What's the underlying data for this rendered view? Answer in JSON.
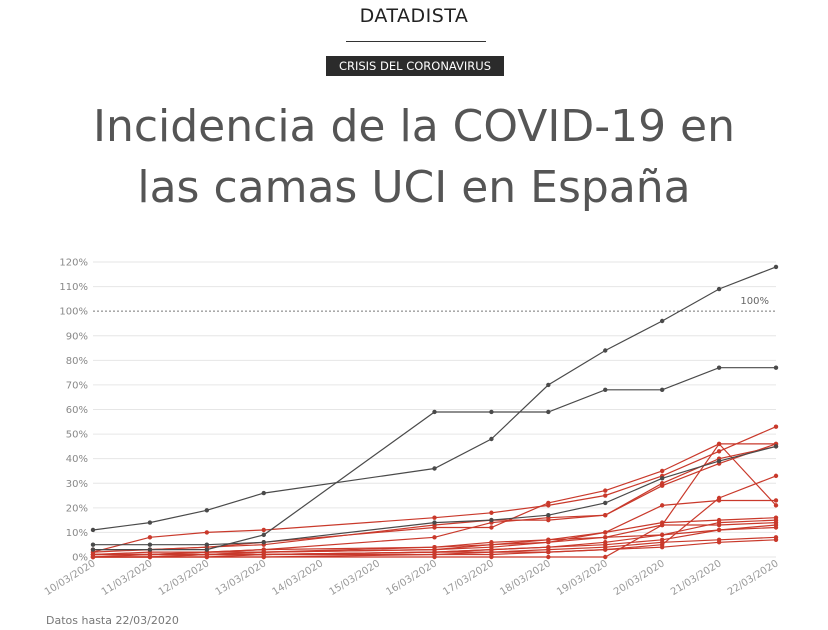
{
  "header": {
    "brand": "DATADISTA",
    "tag": "CRISIS DEL CORONAVIRUS",
    "title_line1": "Incidencia de la COVID-19 en",
    "title_line2": "las camas UCI en España"
  },
  "footnote": "Datos hasta 22/03/2020",
  "colors": {
    "highlight": "#4a4a4a",
    "other": "#c9392b",
    "grid": "#e6e6e6",
    "reference": "#777777"
  },
  "chart_data": {
    "type": "line",
    "title": "",
    "xlabel": "",
    "ylabel": "",
    "ylim": [
      0,
      120
    ],
    "yticks": [
      0,
      10,
      20,
      30,
      40,
      50,
      60,
      70,
      80,
      90,
      100,
      110,
      120
    ],
    "ytick_labels": [
      "0%",
      "10%",
      "20%",
      "30%",
      "40%",
      "50%",
      "60%",
      "70%",
      "80%",
      "90%",
      "100%",
      "110%",
      "120%"
    ],
    "x": [
      "10/03/2020",
      "11/03/2020",
      "12/03/2020",
      "13/03/2020",
      "14/03/2020",
      "15/03/2020",
      "16/03/2020",
      "17/03/2020",
      "18/03/2020",
      "19/03/2020",
      "20/03/2020",
      "21/03/2020",
      "22/03/2020"
    ],
    "reference_line": {
      "value": 100,
      "label": "100%"
    },
    "grid": true,
    "legend": "none",
    "series": [
      {
        "highlight": true,
        "values": [
          11,
          14,
          19,
          26,
          null,
          null,
          36,
          48,
          70,
          84,
          96,
          109,
          118
        ]
      },
      {
        "highlight": true,
        "values": [
          3,
          3,
          3,
          9,
          null,
          null,
          59,
          59,
          59,
          68,
          68,
          77,
          77
        ]
      },
      {
        "highlight": true,
        "values": [
          5,
          5,
          5,
          6,
          null,
          null,
          14,
          15,
          17,
          22,
          32,
          39,
          45
        ]
      },
      {
        "highlight": false,
        "values": [
          2,
          8,
          10,
          11,
          null,
          null,
          16,
          18,
          21,
          25,
          33,
          43,
          53
        ]
      },
      {
        "highlight": false,
        "values": [
          2,
          3,
          4,
          6,
          null,
          null,
          12,
          12,
          22,
          27,
          35,
          46,
          46
        ]
      },
      {
        "highlight": false,
        "values": [
          3,
          3,
          4,
          5,
          null,
          null,
          13,
          15,
          15,
          17,
          29,
          38,
          46
        ]
      },
      {
        "highlight": false,
        "values": [
          1,
          2,
          2,
          3,
          null,
          null,
          8,
          14,
          16,
          17,
          30,
          40,
          45
        ]
      },
      {
        "highlight": false,
        "values": [
          0,
          0,
          1,
          1,
          null,
          null,
          2,
          2,
          2,
          3,
          5,
          24,
          33
        ]
      },
      {
        "highlight": false,
        "values": [
          1,
          1,
          2,
          2,
          null,
          null,
          3,
          5,
          6,
          10,
          21,
          23,
          23
        ]
      },
      {
        "highlight": false,
        "values": [
          0,
          0,
          0,
          0,
          null,
          null,
          0,
          0,
          0,
          0,
          13,
          46,
          21
        ]
      },
      {
        "highlight": false,
        "values": [
          1,
          1,
          1,
          2,
          null,
          null,
          4,
          6,
          7,
          10,
          14,
          15,
          16
        ]
      },
      {
        "highlight": false,
        "values": [
          1,
          1,
          2,
          3,
          null,
          null,
          4,
          5,
          7,
          8,
          13,
          13,
          14
        ]
      },
      {
        "highlight": false,
        "values": [
          1,
          1,
          1,
          2,
          null,
          null,
          3,
          4,
          6,
          8,
          9,
          14,
          15
        ]
      },
      {
        "highlight": false,
        "values": [
          0,
          1,
          1,
          1,
          null,
          null,
          2,
          3,
          4,
          6,
          9,
          11,
          13
        ]
      },
      {
        "highlight": false,
        "values": [
          0,
          0,
          1,
          1,
          null,
          null,
          2,
          3,
          4,
          5,
          7,
          11,
          12
        ]
      },
      {
        "highlight": false,
        "values": [
          0,
          0,
          0,
          1,
          null,
          null,
          1,
          2,
          3,
          4,
          6,
          7,
          8
        ]
      },
      {
        "highlight": false,
        "values": [
          0,
          0,
          0,
          0,
          null,
          null,
          1,
          1,
          2,
          3,
          4,
          6,
          7
        ]
      }
    ]
  }
}
